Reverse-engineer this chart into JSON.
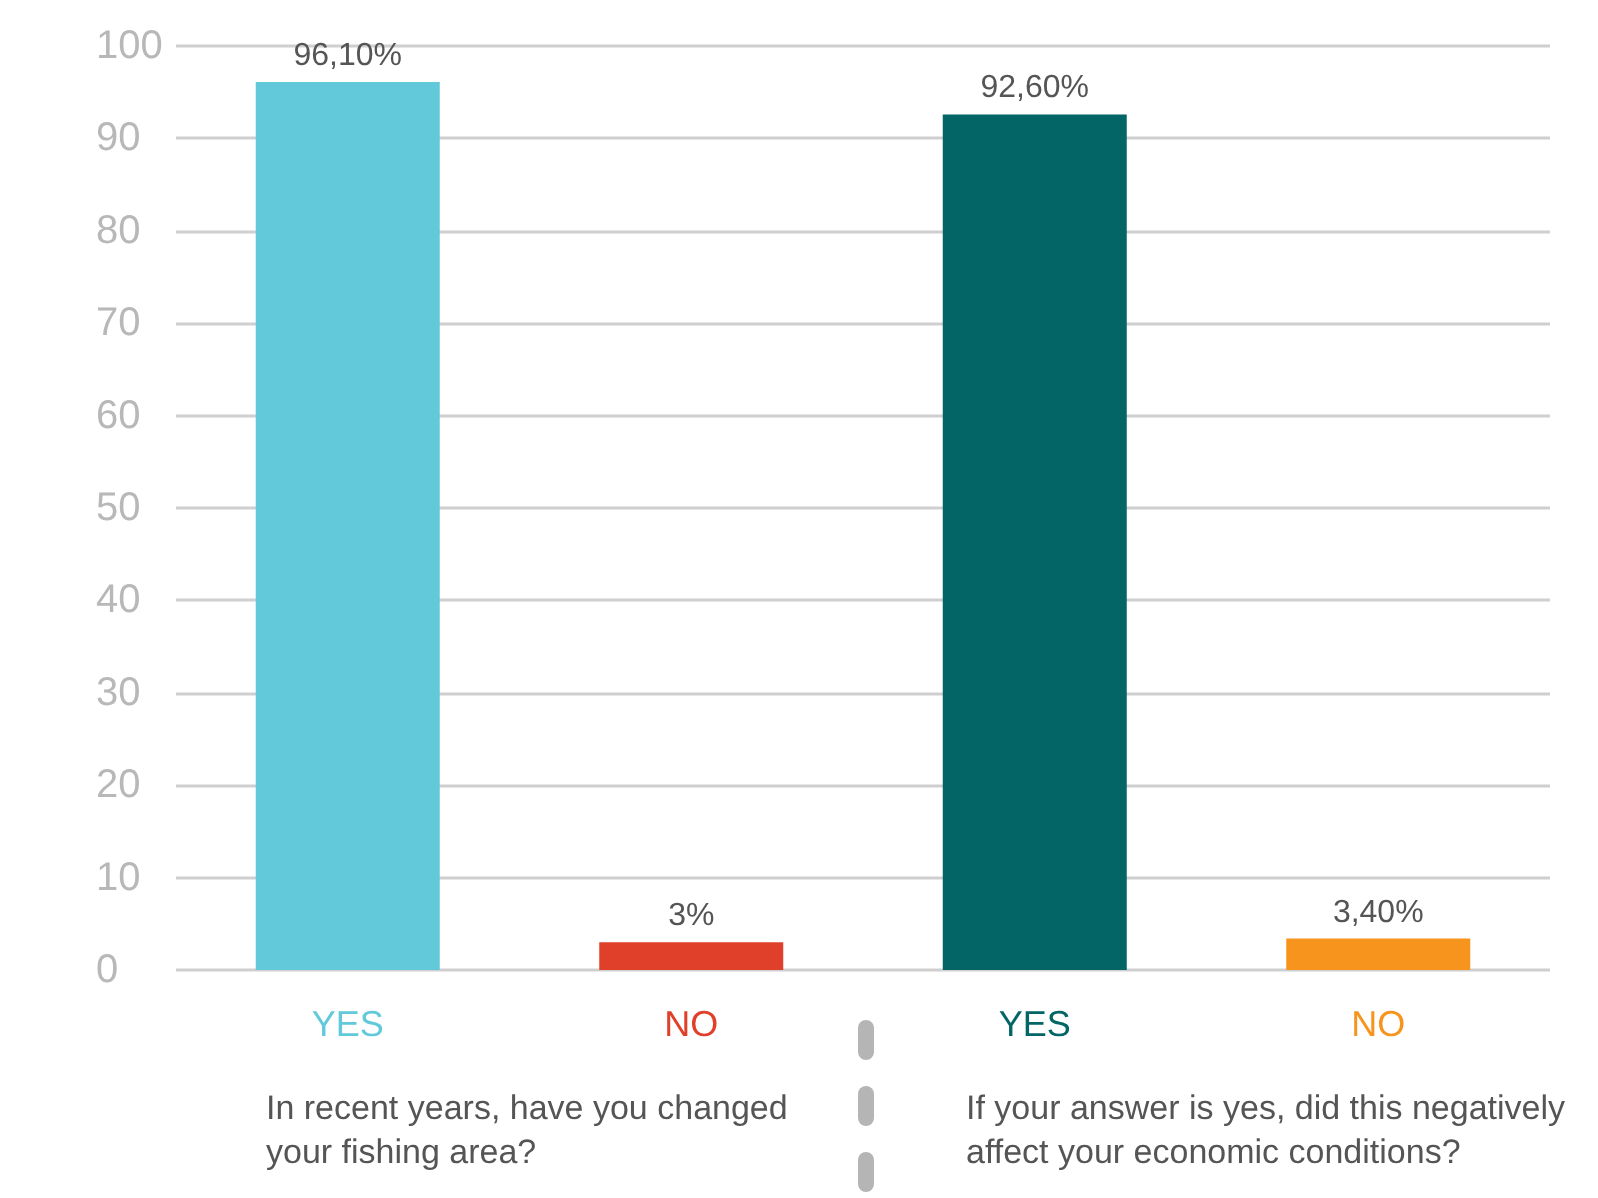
{
  "chart_data": {
    "type": "bar",
    "categories": [
      "YES",
      "NO",
      "YES",
      "NO"
    ],
    "values": [
      96.1,
      3,
      92.6,
      3.4
    ],
    "colors": [
      "#62c9db",
      "#e0402a",
      "#036565",
      "#f7941d"
    ],
    "value_labels": [
      "96,10%",
      "3%",
      "92,60%",
      "3,40%"
    ],
    "ylim": [
      0,
      100
    ],
    "yticks": [
      0,
      10,
      20,
      30,
      40,
      50,
      60,
      70,
      80,
      90,
      100
    ],
    "grid": "y",
    "annotations": [
      "In recent years, have you changed\nyour fishing area?",
      "If your answer is yes, did this negatively\naffect your economic conditions?"
    ]
  }
}
